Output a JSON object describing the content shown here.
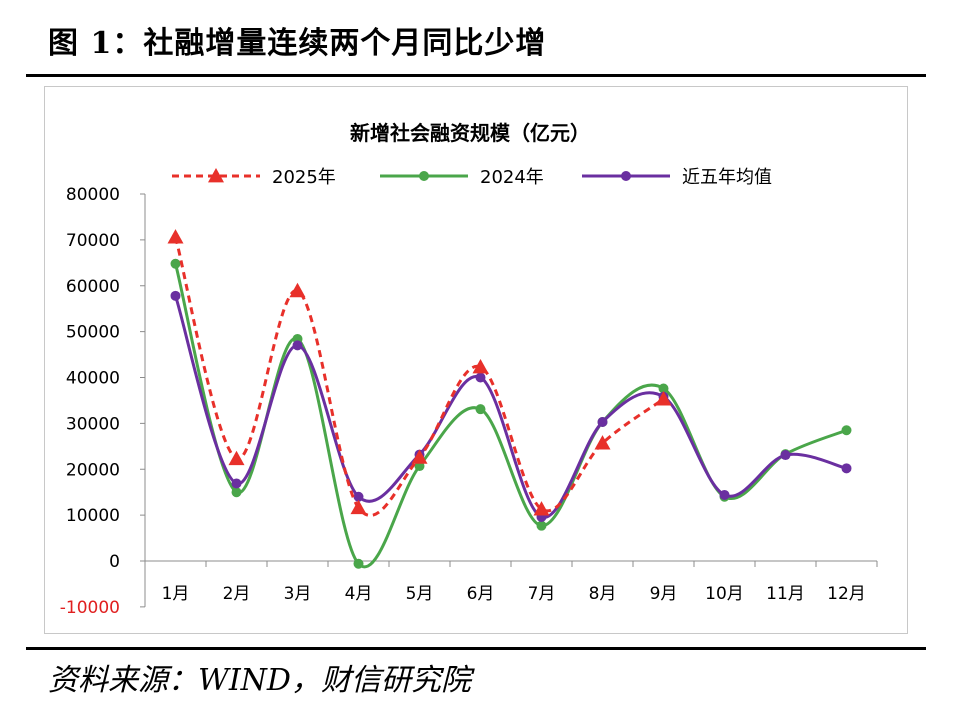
{
  "figure": {
    "title": "图 1：社融增量连续两个月同比少增",
    "source": "资料来源：WIND，财信研究院"
  },
  "chart_data": {
    "type": "line",
    "title": "新增社会融资规模（亿元）",
    "xlabel": "",
    "ylabel": "",
    "categories": [
      "1月",
      "2月",
      "3月",
      "4月",
      "5月",
      "6月",
      "7月",
      "8月",
      "9月",
      "10月",
      "11月",
      "12月"
    ],
    "ylim": [
      -10000,
      80000
    ],
    "yticks": [
      -10000,
      0,
      10000,
      20000,
      30000,
      40000,
      50000,
      60000,
      70000,
      80000
    ],
    "ytick_labels": [
      "-10000",
      "0",
      "10000",
      "20000",
      "30000",
      "40000",
      "50000",
      "60000",
      "70000",
      "80000"
    ],
    "grid": false,
    "legend_position": "top",
    "series": [
      {
        "name": "2025年",
        "color": "#e8302a",
        "dash": true,
        "marker": "triangle",
        "values": [
          70600,
          22300,
          58900,
          11600,
          22600,
          42300,
          11300,
          25700,
          35300,
          null,
          null,
          null
        ]
      },
      {
        "name": "2024年",
        "color": "#4aa64a",
        "dash": false,
        "marker": "circle",
        "values": [
          64800,
          15000,
          48400,
          -600,
          20700,
          33100,
          7700,
          30300,
          37600,
          14000,
          23300,
          28500
        ]
      },
      {
        "name": "近五年均值",
        "color": "#6a2fa0",
        "dash": false,
        "marker": "circle",
        "values": [
          57800,
          16900,
          47000,
          14000,
          23200,
          40000,
          9600,
          30300,
          35800,
          14400,
          23100,
          20200
        ]
      }
    ]
  }
}
